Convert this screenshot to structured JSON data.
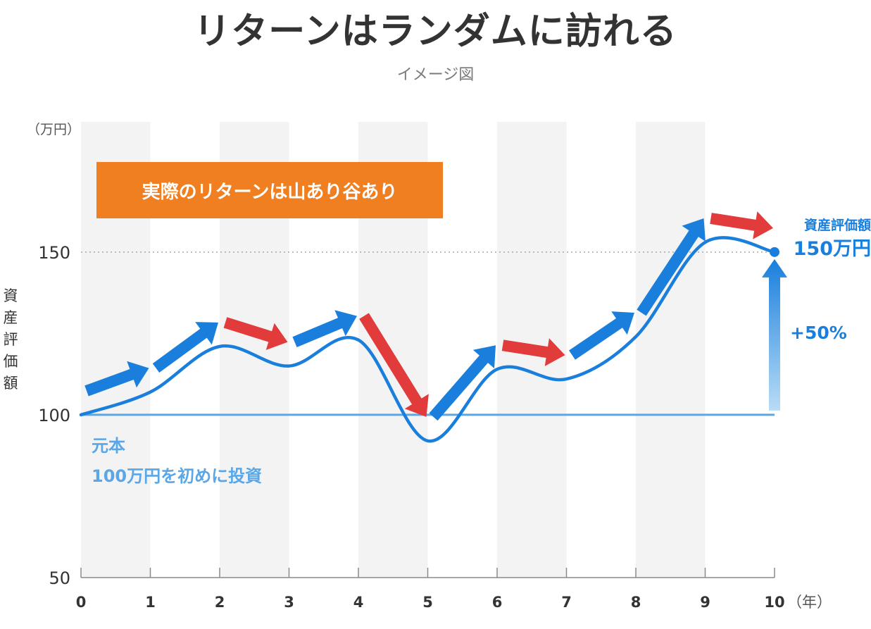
{
  "title": "リターンはランダムに訪れる",
  "subtitle": "イメージ図",
  "colors": {
    "line": "#1a7fdc",
    "baseline": "#5aa7e8",
    "up_arrow": "#1a7fdc",
    "down_arrow": "#e23b3b",
    "callout_bg": "#f07f22",
    "band": "#f3f3f3",
    "text": "#333333"
  },
  "callout": "実際のリターンは山あり谷あり",
  "principal": {
    "line1": "元本",
    "line2": "100万円を初めに投資"
  },
  "end_value": {
    "label": "資産評価額",
    "value": "150万円"
  },
  "gain_label": "+50%",
  "chart_data": {
    "type": "line",
    "title": "リターンはランダムに訪れる",
    "subtitle": "イメージ図",
    "ylabel": "資産評価額",
    "y_unit": "（万円）",
    "x_unit": "（年）",
    "ylim": [
      50,
      190
    ],
    "xlim": [
      0,
      10
    ],
    "y_ticks": [
      "50",
      "100",
      "150"
    ],
    "x_ticks": [
      "0",
      "1",
      "2",
      "3",
      "4",
      "5",
      "6",
      "7",
      "8",
      "9",
      "10"
    ],
    "series": [
      {
        "x": [
          0,
          1,
          2,
          3,
          4,
          5,
          6,
          7,
          8,
          9,
          10
        ],
        "values": [
          100,
          107,
          121,
          115,
          123,
          92,
          114,
          111,
          124,
          153,
          150
        ]
      },
      {
        "x": [
          0,
          10
        ],
        "values": [
          100,
          100
        ]
      }
    ],
    "reference_line": 150,
    "grid": false,
    "arrow_directions": [
      "up",
      "up",
      "down",
      "up",
      "down",
      "up",
      "down",
      "up",
      "up",
      "down"
    ]
  }
}
